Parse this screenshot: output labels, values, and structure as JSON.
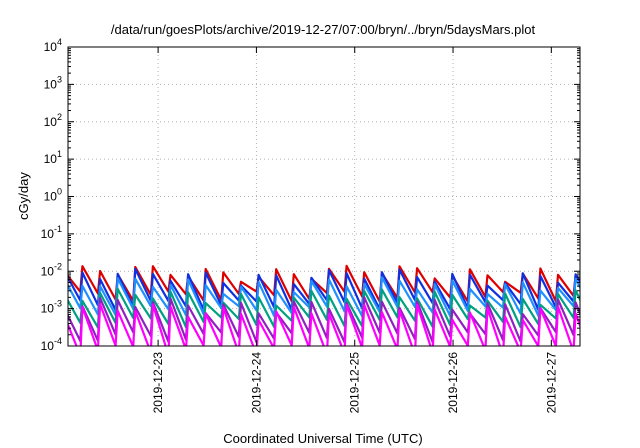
{
  "chart_data": {
    "type": "line",
    "title": "/data/run/goesPlots/archive/2019-12-27/07:00/bryn/../bryn/5daysMars.plot",
    "xlabel": "Coordinated Universal Time (UTC)",
    "ylabel": "cGy/day",
    "y_scale": "log",
    "ylim": [
      0.0001,
      10000
    ],
    "xlim": [
      "2019-12-22T02:00",
      "2019-12-27T07:00"
    ],
    "grid": true,
    "x_ticks": [
      {
        "value": "2019-12-23",
        "label": "2019-12-23"
      },
      {
        "value": "2019-12-24",
        "label": "2019-12-24"
      },
      {
        "value": "2019-12-25",
        "label": "2019-12-25"
      },
      {
        "value": "2019-12-26",
        "label": "2019-12-26"
      },
      {
        "value": "2019-12-27",
        "label": "2019-12-27"
      }
    ],
    "y_ticks": [
      {
        "value": 0.0001,
        "base": "10",
        "exp": "-4"
      },
      {
        "value": 0.001,
        "base": "10",
        "exp": "-3"
      },
      {
        "value": 0.01,
        "base": "10",
        "exp": "-2"
      },
      {
        "value": 0.1,
        "base": "10",
        "exp": "-1"
      },
      {
        "value": 1,
        "base": "10",
        "exp": "0"
      },
      {
        "value": 10,
        "base": "10",
        "exp": "1"
      },
      {
        "value": 100,
        "base": "10",
        "exp": "2"
      },
      {
        "value": 1000,
        "base": "10",
        "exp": "3"
      },
      {
        "value": 10000,
        "base": "10",
        "exp": "4"
      }
    ],
    "sawtooth_period_hours": 4.3,
    "series": [
      {
        "color": "#dd0000",
        "peak": 0.0095,
        "trough": 0.0022
      },
      {
        "color": "#1030e0",
        "peak": 0.0075,
        "trough": 0.0013
      },
      {
        "color": "#2090ff",
        "peak": 0.0045,
        "trough": 0.0009
      },
      {
        "color": "#00a080",
        "peak": 0.0022,
        "trough": 0.00045
      },
      {
        "color": "#9020c0",
        "peak": 0.0013,
        "trough": 0.00018
      },
      {
        "color": "#ff00ff",
        "peak": 0.0009,
        "trough": 8e-05
      }
    ]
  }
}
